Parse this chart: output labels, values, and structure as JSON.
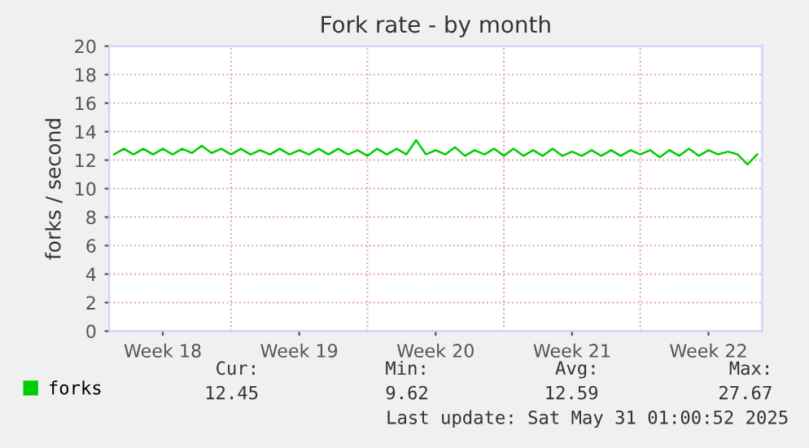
{
  "chart_data": {
    "type": "line",
    "title": "Fork rate - by month",
    "ylabel": "forks / second",
    "categories": [
      null,
      null,
      null,
      null,
      null,
      "Week 18",
      null,
      null,
      null,
      null,
      null,
      null,
      null,
      null,
      null,
      null,
      null,
      null,
      null,
      "Week 19",
      null,
      null,
      null,
      null,
      null,
      null,
      null,
      null,
      null,
      null,
      null,
      null,
      null,
      "Week 20",
      null,
      null,
      null,
      null,
      null,
      null,
      null,
      null,
      null,
      null,
      null,
      null,
      null,
      "Week 21",
      null,
      null,
      null,
      null,
      null,
      null,
      null,
      null,
      null,
      null,
      null,
      null,
      null,
      "Week 22",
      null,
      null,
      null,
      null,
      null
    ],
    "ylim": [
      0,
      20
    ],
    "yticks": [
      0,
      2,
      4,
      6,
      8,
      10,
      12,
      14,
      16,
      18,
      20
    ],
    "grid": true,
    "legend": "bottom",
    "series": [
      {
        "name": "forks",
        "color": "#00cc00",
        "values": [
          12.4,
          12.8,
          12.4,
          12.8,
          12.4,
          12.8,
          12.4,
          12.8,
          12.5,
          13.0,
          12.5,
          12.8,
          12.4,
          12.8,
          12.4,
          12.7,
          12.4,
          12.8,
          12.4,
          12.7,
          12.4,
          12.8,
          12.4,
          12.8,
          12.4,
          12.7,
          12.3,
          12.8,
          12.4,
          12.8,
          12.4,
          13.4,
          12.4,
          12.7,
          12.4,
          12.9,
          12.3,
          12.7,
          12.4,
          12.8,
          12.3,
          12.8,
          12.3,
          12.7,
          12.3,
          12.8,
          12.3,
          12.6,
          12.3,
          12.7,
          12.3,
          12.7,
          12.3,
          12.7,
          12.4,
          12.7,
          12.2,
          12.7,
          12.3,
          12.8,
          12.3,
          12.7,
          12.4,
          12.6,
          12.4,
          11.7,
          12.4
        ]
      }
    ],
    "annotations": [
      "Cur:",
      "12.45",
      "Min:",
      "9.62",
      "Avg:",
      "12.59",
      "Max:",
      "27.67",
      "Last update: Sat May 31 01:00:52 2025"
    ]
  }
}
